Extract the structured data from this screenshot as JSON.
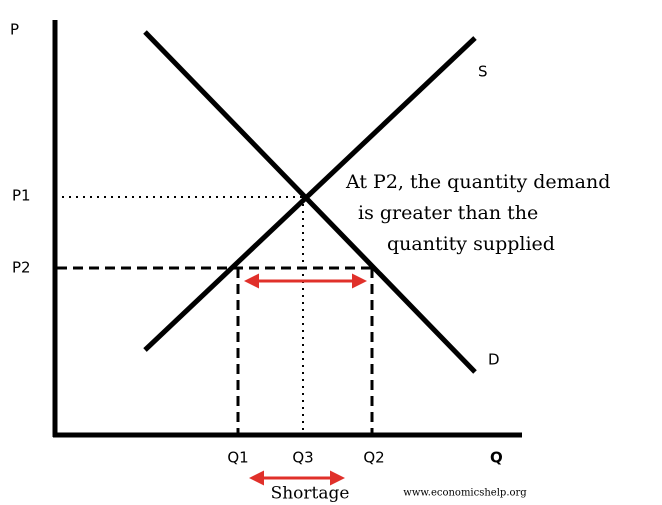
{
  "axes": {
    "y_label": "P",
    "x_label": "Q"
  },
  "curves": {
    "supply": "S",
    "demand": "D"
  },
  "price_levels": [
    "P1",
    "P2"
  ],
  "quantity_levels": [
    "Q1",
    "Q3",
    "Q2"
  ],
  "annotation": [
    "At P2, the quantity demand",
    "is greater than the",
    "quantity supplied"
  ],
  "shortage_label": "Shortage",
  "source": "www.economicshelp.org"
}
